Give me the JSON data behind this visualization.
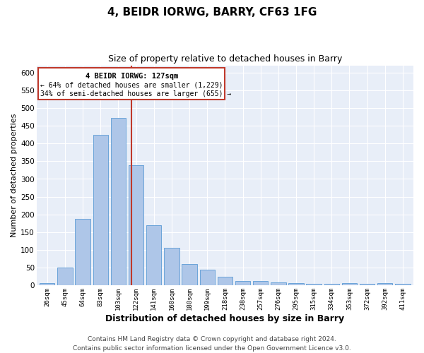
{
  "title": "4, BEIDR IORWG, BARRY, CF63 1FG",
  "subtitle": "Size of property relative to detached houses in Barry",
  "xlabel": "Distribution of detached houses by size in Barry",
  "ylabel": "Number of detached properties",
  "categories": [
    "26sqm",
    "45sqm",
    "64sqm",
    "83sqm",
    "103sqm",
    "122sqm",
    "141sqm",
    "160sqm",
    "180sqm",
    "199sqm",
    "218sqm",
    "238sqm",
    "257sqm",
    "276sqm",
    "295sqm",
    "315sqm",
    "334sqm",
    "353sqm",
    "372sqm",
    "392sqm",
    "411sqm"
  ],
  "values": [
    5,
    50,
    187,
    425,
    472,
    338,
    170,
    106,
    60,
    44,
    24,
    11,
    11,
    8,
    6,
    4,
    4,
    5,
    4,
    5,
    3
  ],
  "bar_color": "#aec6e8",
  "bar_edge_color": "#5b9bd5",
  "vline_color": "#c0392b",
  "vline_x": 4.72,
  "ylim": [
    0,
    620
  ],
  "yticks": [
    0,
    50,
    100,
    150,
    200,
    250,
    300,
    350,
    400,
    450,
    500,
    550,
    600
  ],
  "annotation_title": "4 BEIDR IORWG: 127sqm",
  "annotation_line1": "← 64% of detached houses are smaller (1,229)",
  "annotation_line2": "34% of semi-detached houses are larger (655) →",
  "annotation_box_color": "#ffffff",
  "annotation_box_edge": "#c0392b",
  "footer": "Contains HM Land Registry data © Crown copyright and database right 2024.\nContains public sector information licensed under the Open Government Licence v3.0.",
  "background_color": "#e8eef8",
  "grid_color": "#ffffff",
  "title_fontsize": 11,
  "subtitle_fontsize": 9,
  "xlabel_fontsize": 9,
  "ylabel_fontsize": 8,
  "footer_fontsize": 6.5
}
